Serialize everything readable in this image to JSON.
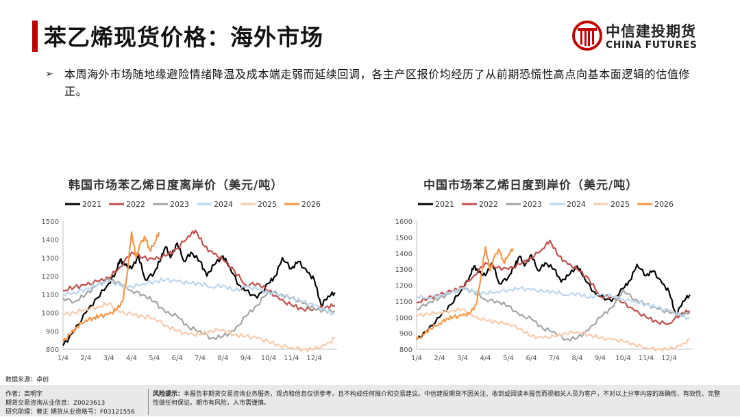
{
  "header": {
    "title": "苯乙烯现货价格：海外市场",
    "logo_cn": "中信建投期货",
    "logo_en": "CHINA FUTURES",
    "accent_color": "#c00000"
  },
  "bullet": {
    "mark": "➢",
    "text": "本周海外市场随地缘避险情绪降温及成本端走弱而延续回调，各主产区报价均经历了从前期恐慌性高点向基本面逻辑的估值修正。"
  },
  "chart_data": [
    {
      "type": "line",
      "title": "韩国市场苯乙烯日度离岸价（美元/吨）",
      "ylim": [
        800,
        1500
      ],
      "yticks": [
        800,
        900,
        1000,
        1100,
        1200,
        1300,
        1400,
        1500
      ],
      "xticks": [
        "1/4",
        "2/4",
        "3/4",
        "4/4",
        "5/4",
        "6/4",
        "7/4",
        "8/4",
        "9/4",
        "10/4",
        "11/4",
        "12/4"
      ],
      "x_unit": "month",
      "series": [
        {
          "name": "2021",
          "color": "#000000",
          "x": [
            0,
            0.5,
            1,
            1.5,
            2,
            2.3,
            2.5,
            2.7,
            3,
            3.3,
            3.6,
            4,
            4.3,
            4.5,
            4.7,
            5,
            5.3,
            5.6,
            6,
            6.3,
            6.6,
            7,
            7.3,
            7.7,
            8,
            8.5,
            9,
            9.3,
            9.6,
            10,
            10.3,
            10.7,
            11,
            11.3,
            11.6,
            11.9
          ],
          "y": [
            820,
            900,
            1000,
            1080,
            1160,
            1220,
            1290,
            1260,
            1240,
            1310,
            1180,
            1220,
            1300,
            1360,
            1300,
            1380,
            1280,
            1330,
            1280,
            1200,
            1260,
            1310,
            1250,
            1150,
            1120,
            1080,
            1160,
            1200,
            1300,
            1240,
            1280,
            1220,
            1180,
            1040,
            1090,
            1110
          ]
        },
        {
          "name": "2022",
          "color": "#c0504d",
          "x": [
            0,
            0.5,
            1,
            1.5,
            2,
            2.5,
            3,
            3.5,
            4,
            4.5,
            5,
            5.5,
            5.8,
            6.2,
            6.6,
            7,
            7.5,
            8,
            8.5,
            9,
            9.5,
            10,
            10.5,
            11,
            11.5,
            11.9
          ],
          "y": [
            1120,
            1140,
            1150,
            1170,
            1190,
            1250,
            1330,
            1300,
            1290,
            1310,
            1350,
            1420,
            1450,
            1360,
            1320,
            1290,
            1230,
            1150,
            1160,
            1120,
            1070,
            1040,
            1020,
            1020,
            1030,
            1040
          ]
        },
        {
          "name": "2023",
          "color": "#a5a5a5",
          "x": [
            0,
            0.5,
            1,
            1.5,
            2,
            2.5,
            3,
            3.5,
            4,
            4.5,
            5,
            5.5,
            6,
            6.5,
            7,
            7.5,
            8,
            8.5,
            9,
            9.5,
            10,
            10.5,
            11,
            11.5,
            11.9
          ],
          "y": [
            1080,
            1060,
            1100,
            1150,
            1180,
            1160,
            1120,
            1100,
            1060,
            1000,
            980,
            920,
            900,
            860,
            870,
            900,
            980,
            1040,
            1120,
            1100,
            1080,
            1050,
            1020,
            1010,
            1010
          ]
        },
        {
          "name": "2024",
          "color": "#bdd7ee",
          "x": [
            0,
            0.5,
            1,
            1.5,
            2,
            2.5,
            3,
            3.5,
            4,
            4.5,
            5,
            5.5,
            6,
            6.5,
            7,
            7.5,
            8,
            8.5,
            9,
            9.5,
            10,
            10.5,
            11,
            11.5,
            11.9
          ],
          "y": [
            1100,
            1110,
            1130,
            1150,
            1170,
            1150,
            1140,
            1160,
            1170,
            1180,
            1170,
            1160,
            1160,
            1140,
            1150,
            1120,
            1140,
            1130,
            1110,
            1100,
            1080,
            1060,
            1040,
            1010,
            990
          ]
        },
        {
          "name": "2025",
          "color": "#f8cbad",
          "x": [
            0,
            0.5,
            1,
            1.5,
            2,
            2.5,
            3,
            3.5,
            4,
            4.5,
            5,
            5.5,
            6,
            6.5,
            7,
            7.5,
            8,
            8.5,
            9,
            9.5,
            10,
            10.5,
            11,
            11.5,
            11.9
          ],
          "y": [
            990,
            1000,
            1020,
            1030,
            1050,
            1000,
            990,
            980,
            970,
            930,
            900,
            880,
            880,
            900,
            910,
            880,
            870,
            860,
            840,
            820,
            810,
            800,
            800,
            820,
            860
          ]
        },
        {
          "name": "2026",
          "color": "#f79646",
          "x": [
            0,
            0.3,
            0.6,
            1,
            1.3,
            1.6,
            2,
            2.3,
            2.6,
            2.8,
            3,
            3.2,
            3.4,
            3.6,
            3.8,
            4,
            4.2
          ],
          "y": [
            840,
            880,
            920,
            960,
            970,
            980,
            990,
            1010,
            1060,
            1200,
            1440,
            1300,
            1380,
            1410,
            1340,
            1380,
            1440
          ]
        }
      ]
    },
    {
      "type": "line",
      "title": "中国市场苯乙烯日度到岸价（美元/吨）",
      "ylim": [
        800,
        1600
      ],
      "yticks": [
        800,
        900,
        1000,
        1100,
        1200,
        1300,
        1400,
        1500,
        1600
      ],
      "xticks": [
        "1/4",
        "2/4",
        "3/4",
        "4/4",
        "5/4",
        "6/4",
        "7/4",
        "8/4",
        "9/4",
        "10/4",
        "11/4",
        "12/4"
      ],
      "x_unit": "month",
      "series": [
        {
          "name": "2021",
          "color": "#000000",
          "x": [
            0,
            0.5,
            1,
            1.5,
            2,
            2.3,
            2.5,
            2.7,
            3,
            3.3,
            3.6,
            4,
            4.3,
            4.5,
            4.7,
            5,
            5.3,
            5.6,
            6,
            6.3,
            6.6,
            7,
            7.3,
            7.7,
            8,
            8.5,
            9,
            9.3,
            9.6,
            10,
            10.3,
            10.7,
            11,
            11.3,
            11.6,
            11.9
          ],
          "y": [
            860,
            920,
            1000,
            1080,
            1180,
            1250,
            1320,
            1280,
            1260,
            1340,
            1210,
            1250,
            1330,
            1380,
            1320,
            1390,
            1290,
            1340,
            1300,
            1220,
            1260,
            1320,
            1250,
            1160,
            1130,
            1100,
            1180,
            1230,
            1330,
            1260,
            1290,
            1210,
            1160,
            1010,
            1100,
            1140
          ]
        },
        {
          "name": "2022",
          "color": "#c0504d",
          "x": [
            0,
            0.5,
            1,
            1.5,
            2,
            2.5,
            3,
            3.5,
            4,
            4.5,
            5,
            5.5,
            5.8,
            6.2,
            6.6,
            7,
            7.5,
            8,
            8.5,
            9,
            9.5,
            10,
            10.5,
            11,
            11.5,
            11.9
          ],
          "y": [
            1090,
            1120,
            1140,
            1160,
            1190,
            1260,
            1340,
            1310,
            1300,
            1330,
            1370,
            1430,
            1480,
            1380,
            1330,
            1300,
            1240,
            1130,
            1130,
            1090,
            1040,
            1000,
            970,
            960,
            1020,
            1040
          ]
        },
        {
          "name": "2023",
          "color": "#a5a5a5",
          "x": [
            0,
            0.5,
            1,
            1.5,
            2,
            2.5,
            3,
            3.5,
            4,
            4.5,
            5,
            5.5,
            6,
            6.5,
            7,
            7.5,
            8,
            8.5,
            9,
            9.5,
            10,
            10.5,
            11,
            11.5,
            11.9
          ],
          "y": [
            1050,
            1090,
            1120,
            1150,
            1180,
            1160,
            1110,
            1100,
            1070,
            1010,
            990,
            930,
            910,
            860,
            870,
            920,
            1000,
            1060,
            1170,
            1110,
            1080,
            1050,
            1030,
            1020,
            1030
          ]
        },
        {
          "name": "2024",
          "color": "#bdd7ee",
          "x": [
            0,
            0.5,
            1,
            1.5,
            2,
            2.5,
            3,
            3.5,
            4,
            4.5,
            5,
            5.5,
            6,
            6.5,
            7,
            7.5,
            8,
            8.5,
            9,
            9.5,
            10,
            10.5,
            11,
            11.5,
            11.9
          ],
          "y": [
            1130,
            1120,
            1140,
            1150,
            1180,
            1160,
            1150,
            1160,
            1170,
            1180,
            1170,
            1160,
            1160,
            1140,
            1150,
            1120,
            1140,
            1130,
            1110,
            1100,
            1080,
            1060,
            1040,
            1010,
            990
          ]
        },
        {
          "name": "2025",
          "color": "#f8cbad",
          "x": [
            0,
            0.5,
            1,
            1.5,
            2,
            2.5,
            3,
            3.5,
            4,
            4.5,
            5,
            5.5,
            6,
            6.5,
            7,
            7.5,
            8,
            8.5,
            9,
            9.5,
            10,
            10.5,
            11,
            11.5,
            11.9
          ],
          "y": [
            1010,
            1020,
            1030,
            1040,
            1050,
            1000,
            980,
            970,
            960,
            930,
            880,
            870,
            880,
            900,
            910,
            890,
            870,
            860,
            850,
            830,
            810,
            800,
            800,
            820,
            860
          ]
        },
        {
          "name": "2026",
          "color": "#f79646",
          "x": [
            0,
            0.3,
            0.6,
            1,
            1.3,
            1.6,
            2,
            2.3,
            2.6,
            2.8,
            3,
            3.2,
            3.4,
            3.6,
            3.8,
            4,
            4.2
          ],
          "y": [
            860,
            890,
            930,
            960,
            990,
            1000,
            1010,
            1020,
            1080,
            1250,
            1440,
            1290,
            1380,
            1420,
            1340,
            1390,
            1430
          ]
        }
      ]
    }
  ],
  "source": "数据来源：卓创",
  "footer": {
    "author": "作者：高明宇",
    "license1": "期货交易咨询从业信息：Z0023613",
    "license2": "研究助理：曹正 期货从业资格号：F03121556",
    "risk_label": "风险提示：",
    "risk_text": "本报告非期货交易咨询业务服务，观点和信息仅供参考，且不构成任何推介和交易建议。中信建投期货不因关注、收到或阅读本报告而视相关人员为客户，不对以上分享内容的准确性、有效性、完整性做任何保证。期市有风险，入市需谨慎。"
  }
}
